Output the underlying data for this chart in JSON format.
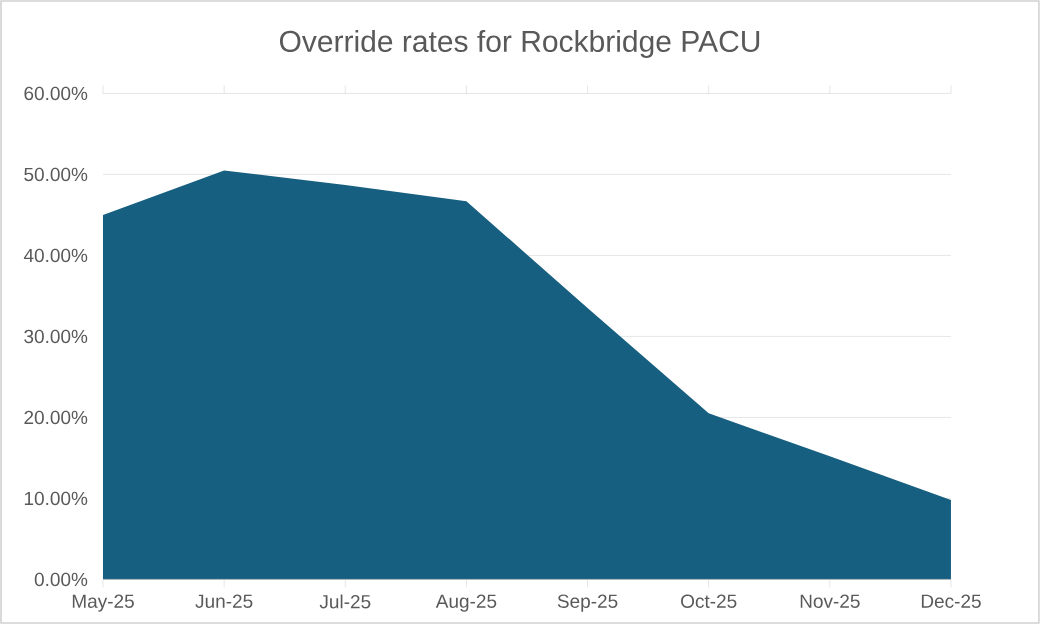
{
  "chart_data": {
    "type": "area",
    "title": "Override rates for Rockbridge PACU",
    "categories": [
      "May-25",
      "Jun-25",
      "Jul-25",
      "Aug-25",
      "Sep-25",
      "Oct-25",
      "Nov-25",
      "Dec-25"
    ],
    "values": [
      45.0,
      50.5,
      48.7,
      46.7,
      33.5,
      20.5,
      15.2,
      9.8
    ],
    "color": "#175f80",
    "ylim": [
      0,
      60
    ],
    "yticks": [
      {
        "value": 0,
        "label": "0.00%"
      },
      {
        "value": 10,
        "label": "10.00%"
      },
      {
        "value": 20,
        "label": "20.00%"
      },
      {
        "value": 30,
        "label": "30.00%"
      },
      {
        "value": 40,
        "label": "40.00%"
      },
      {
        "value": 50,
        "label": "50.00%"
      },
      {
        "value": 60,
        "label": "60.00%"
      }
    ],
    "grid": "y"
  }
}
